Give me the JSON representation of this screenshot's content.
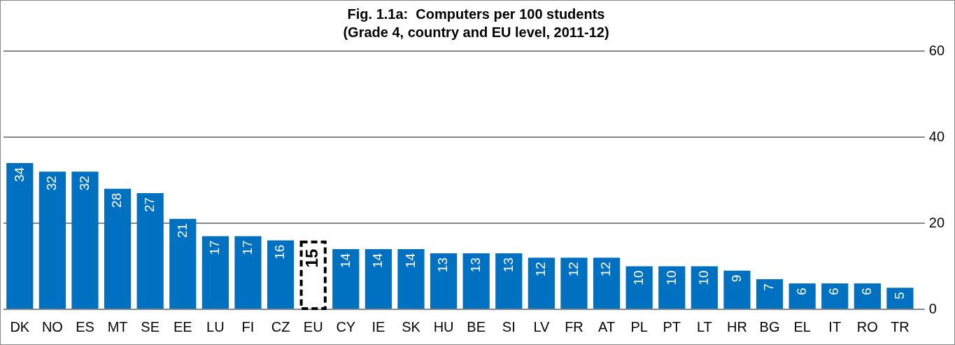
{
  "chart_data": {
    "type": "bar",
    "title": "Fig. 1.1a:  Computers per 100 students",
    "subtitle": "(Grade 4, country and EU level, 2011-12)",
    "categories": [
      "DK",
      "NO",
      "ES",
      "MT",
      "SE",
      "EE",
      "LU",
      "FI",
      "CZ",
      "EU",
      "CY",
      "IE",
      "SK",
      "HU",
      "BE",
      "SI",
      "LV",
      "FR",
      "AT",
      "PL",
      "PT",
      "LT",
      "HR",
      "BG",
      "EL",
      "IT",
      "RO",
      "TR"
    ],
    "values": [
      34,
      32,
      32,
      28,
      27,
      21,
      17,
      17,
      16,
      15,
      14,
      14,
      14,
      13,
      13,
      13,
      12,
      12,
      12,
      10,
      10,
      10,
      9,
      7,
      6,
      6,
      6,
      5
    ],
    "colors": [
      "#0070c0",
      "#0070c0",
      "#0070c0",
      "#0070c0",
      "#0070c0",
      "#0070c0",
      "#0070c0",
      "#0070c0",
      "#0070c0",
      "#ffffff",
      "#0070c0",
      "#0070c0",
      "#0070c0",
      "#0070c0",
      "#0070c0",
      "#0070c0",
      "#0070c0",
      "#0070c0",
      "#0070c0",
      "#0070c0",
      "#0070c0",
      "#0070c0",
      "#0070c0",
      "#0070c0",
      "#0070c0",
      "#0070c0",
      "#0070c0",
      "#0070c0"
    ],
    "ylim": [
      0,
      60
    ],
    "yticks": [
      0,
      20,
      40,
      60
    ],
    "grid": true,
    "data_labels": true
  }
}
